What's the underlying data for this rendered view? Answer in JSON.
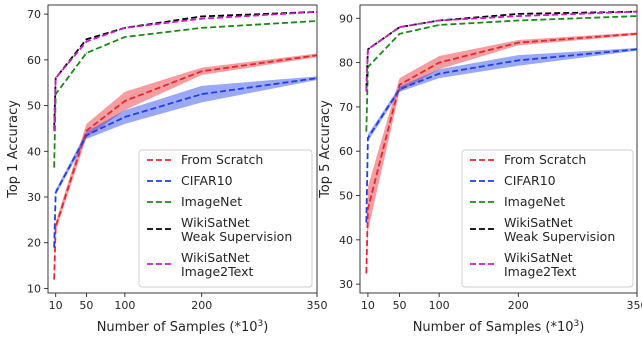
{
  "chart_data": [
    {
      "type": "line",
      "title": "",
      "xlabel": "Number of Samples (*10",
      "xlabel_sup": "3",
      "xlabel_tail": ")",
      "ylabel": "Top 1 Accuracy",
      "x": [
        8,
        10,
        50,
        100,
        200,
        350
      ],
      "xticks": [
        "10",
        "50",
        "100",
        "200",
        "350"
      ],
      "xtick_values": [
        10,
        50,
        100,
        200,
        350
      ],
      "xlim": [
        0,
        350
      ],
      "ylim": [
        9,
        72
      ],
      "yticks": [
        "10",
        "20",
        "30",
        "40",
        "50",
        "60",
        "70"
      ],
      "ytick_values": [
        10,
        20,
        30,
        40,
        50,
        60,
        70
      ],
      "legend_position": "lower-right",
      "series": [
        {
          "name": "From Scratch",
          "color": "#e8262d",
          "values": [
            12,
            23.5,
            44.5,
            51,
            57.5,
            61
          ],
          "band": [
            1,
            1,
            1.5,
            2,
            0.8,
            0.4
          ]
        },
        {
          "name": "CIFAR10",
          "color": "#1f3fe8",
          "values": [
            19,
            31,
            43.5,
            47.5,
            52.5,
            56
          ],
          "band": [
            0.6,
            0.6,
            0.8,
            1.5,
            1.8,
            0.4
          ]
        },
        {
          "name": "ImageNet",
          "color": "#1a8a1a",
          "values": [
            36.5,
            52.5,
            61.5,
            65,
            67,
            68.5
          ],
          "band": [
            0,
            0,
            0,
            0,
            0,
            0
          ]
        },
        {
          "name": "WikiSatNet\nWeak Supervision",
          "color": "#000000",
          "values": [
            45,
            56,
            64.5,
            67,
            69.5,
            70.5
          ],
          "band": [
            0,
            0,
            0,
            0,
            0,
            0
          ]
        },
        {
          "name": "WikiSatNet\nImage2Text",
          "color": "#c81ec8",
          "values": [
            44.5,
            56,
            64,
            67,
            69,
            70.5
          ],
          "band": [
            0,
            0,
            0,
            0,
            0,
            0
          ]
        }
      ]
    },
    {
      "type": "line",
      "title": "",
      "xlabel": "Number of Samples (*10",
      "xlabel_sup": "3",
      "xlabel_tail": ")",
      "ylabel": "Top 5 Accuracy",
      "x": [
        8,
        10,
        50,
        100,
        200,
        350
      ],
      "xticks": [
        "10",
        "50",
        "100",
        "200",
        "350"
      ],
      "xtick_values": [
        10,
        50,
        100,
        200,
        350
      ],
      "xlim": [
        0,
        350
      ],
      "ylim": [
        28,
        93
      ],
      "yticks": [
        "30",
        "40",
        "50",
        "60",
        "70",
        "80",
        "90"
      ],
      "ytick_values": [
        30,
        40,
        50,
        60,
        70,
        80,
        90
      ],
      "legend_position": "lower-right",
      "series": [
        {
          "name": "From Scratch",
          "color": "#e8262d",
          "values": [
            32.5,
            47,
            75,
            80,
            84.5,
            86.5
          ],
          "band": [
            1,
            5,
            1.5,
            1.5,
            0.6,
            0.3
          ]
        },
        {
          "name": "CIFAR10",
          "color": "#1f3fe8",
          "values": [
            44,
            63,
            74,
            77.5,
            80.5,
            83
          ],
          "band": [
            0.6,
            0.8,
            0.6,
            1,
            1.2,
            0.3
          ]
        },
        {
          "name": "ImageNet",
          "color": "#1a8a1a",
          "values": [
            64.5,
            79,
            86.5,
            88.5,
            89.5,
            90.5
          ],
          "band": [
            0,
            0,
            0,
            0,
            0,
            0
          ]
        },
        {
          "name": "WikiSatNet\nWeak Supervision",
          "color": "#000000",
          "values": [
            74,
            83,
            88,
            89.5,
            91,
            91.5
          ],
          "band": [
            0,
            0,
            0,
            0,
            0,
            0
          ]
        },
        {
          "name": "WikiSatNet\nImage2Text",
          "color": "#c81ec8",
          "values": [
            73.5,
            83,
            88,
            89.5,
            90.5,
            91.5
          ],
          "band": [
            0,
            0,
            0,
            0,
            0,
            0
          ]
        }
      ]
    }
  ]
}
